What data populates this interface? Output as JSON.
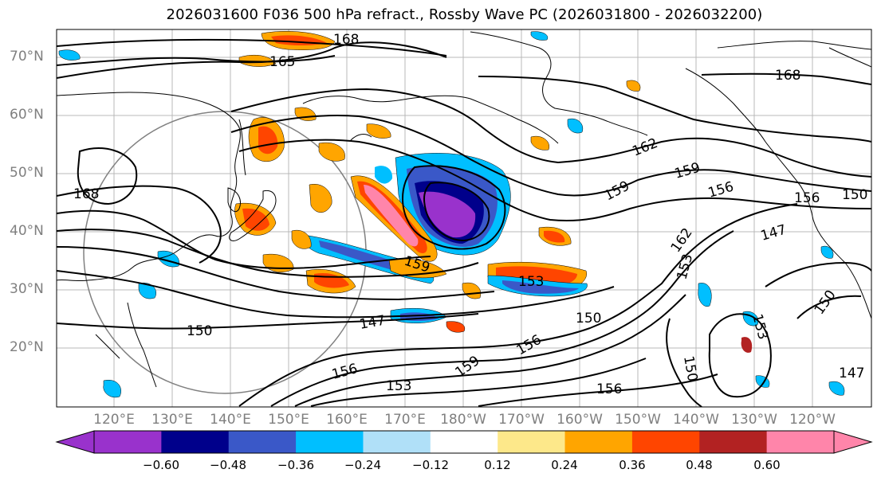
{
  "title": "2026031600 F036 500 hPa refract., Rossby Wave PC (2026031800 - 2026032200)",
  "lat_labels": [
    "70°N",
    "60°N",
    "50°N",
    "40°N",
    "30°N",
    "20°N"
  ],
  "lon_labels": [
    "120°E",
    "130°E",
    "140°E",
    "150°E",
    "160°E",
    "170°E",
    "180°W",
    "170°W",
    "160°W",
    "150°W",
    "140°W",
    "130°W",
    "120°W"
  ],
  "contour_labels": [
    "168",
    "165",
    "168",
    "168",
    "162",
    "159",
    "159",
    "156",
    "156",
    "150",
    "147",
    "162",
    "153",
    "159",
    "153",
    "150",
    "147",
    "150",
    "156",
    "159",
    "156",
    "153",
    "150",
    "147",
    "156",
    "153",
    "150"
  ],
  "colorbar": {
    "ticks": [
      "−0.60",
      "−0.48",
      "−0.36",
      "−0.24",
      "−0.12",
      "0.12",
      "0.24",
      "0.36",
      "0.48",
      "0.60"
    ],
    "colors": [
      "#9932cc",
      "#00008b",
      "#3a58c8",
      "#00bfff",
      "#b0e0f8",
      "#ffffff",
      "#fde88a",
      "#ffa500",
      "#ff4500",
      "#b22222",
      "#ff85aa"
    ]
  }
}
